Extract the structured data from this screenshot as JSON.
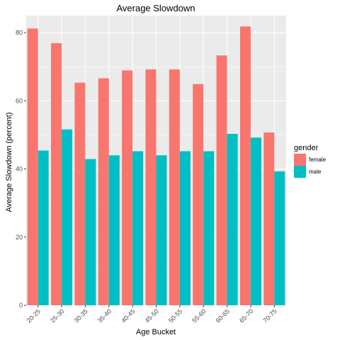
{
  "chart_data": {
    "type": "bar",
    "title": "Average Slowdown",
    "xlabel": "Age Bucket",
    "ylabel": "Average Slowdown (percent)",
    "categories": [
      "20-25",
      "25-30",
      "30-35",
      "35-40",
      "40-45",
      "45-50",
      "50-55",
      "55-60",
      "60-65",
      "65-70",
      "70-75"
    ],
    "series": [
      {
        "name": "female",
        "color": "#F8766D",
        "values": [
          81.2,
          76.9,
          65.3,
          66.6,
          68.9,
          69.2,
          69.2,
          64.9,
          73.3,
          81.8,
          50.7
        ]
      },
      {
        "name": "male",
        "color": "#00BFC4",
        "values": [
          45.4,
          51.6,
          42.9,
          44.0,
          45.2,
          44.0,
          45.2,
          45.2,
          50.3,
          49.2,
          39.3
        ]
      }
    ],
    "ylim": [
      0,
      85
    ],
    "yticks": [
      0,
      20,
      40,
      60,
      80
    ],
    "grid": true,
    "legend": {
      "title": "gender",
      "position": "right"
    },
    "colors": {
      "panel": "#EBEBEB",
      "grid": "#FFFFFF"
    }
  }
}
